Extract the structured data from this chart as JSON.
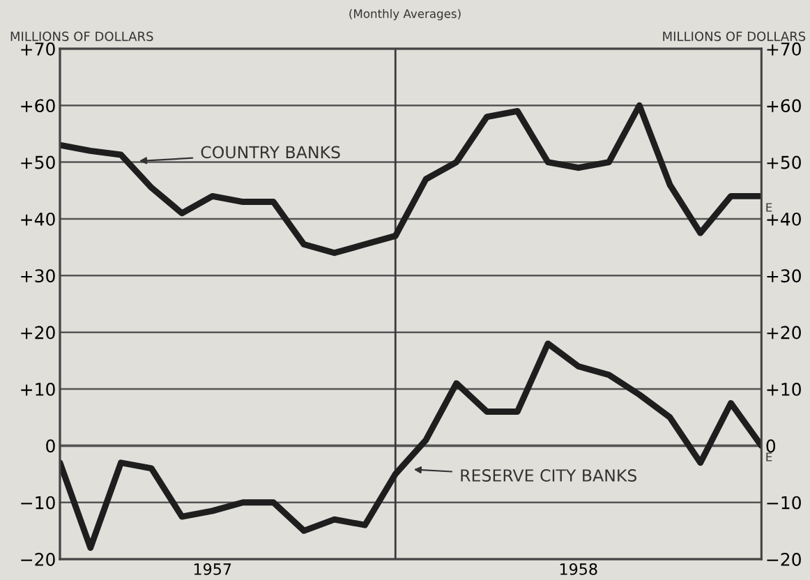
{
  "chart_data": {
    "type": "line",
    "subtitle": "(Monthly Averages)",
    "ylabel": "MILLIONS OF DOLLARS",
    "y2label": "MILLIONS OF DOLLARS",
    "categories": [
      null,
      null,
      null,
      null,
      null,
      "1957",
      null,
      null,
      null,
      null,
      null,
      null,
      null,
      null,
      null,
      null,
      null,
      "1958",
      null,
      null,
      null,
      null,
      null,
      null
    ],
    "ylim": [
      -20,
      70
    ],
    "yticks": [
      {
        "value": -20,
        "label": "−20"
      },
      {
        "value": -10,
        "label": "−10"
      },
      0,
      {
        "value": 10,
        "label": "+10"
      },
      {
        "value": 20,
        "label": "+20"
      },
      {
        "value": 30,
        "label": "+30"
      },
      {
        "value": 40,
        "label": "+40"
      },
      {
        "value": 50,
        "label": "+50"
      },
      {
        "value": 60,
        "label": "+60"
      },
      {
        "value": 70,
        "label": "+70"
      }
    ],
    "y2lim": [
      -20,
      70
    ],
    "y2ticks": [
      {
        "value": -20,
        "label": "−20"
      },
      {
        "value": -10,
        "label": "−10"
      },
      0,
      {
        "value": 10,
        "label": "+10"
      },
      {
        "value": 20,
        "label": "+20"
      },
      {
        "value": 30,
        "label": "+30"
      },
      {
        "value": 40,
        "label": "+40"
      },
      {
        "value": 50,
        "label": "+50"
      },
      {
        "value": 60,
        "label": "+60"
      },
      {
        "value": 70,
        "label": "+70"
      }
    ],
    "grid": "y",
    "legend": false,
    "marker": "none",
    "line_style": "solid",
    "series": [
      {
        "name": "COUNTRY BANKS",
        "color": "#1e1e1e",
        "values": [
          53,
          52,
          51.3,
          45.5,
          41,
          44,
          43,
          43,
          35.5,
          34,
          35.5,
          37,
          47,
          50,
          58,
          59,
          50,
          49,
          50,
          60,
          46,
          37.5,
          44,
          44
        ]
      },
      {
        "name": "RESERVE CITY BANKS",
        "color": "#1e1e1e",
        "values": [
          -3,
          -18,
          -3,
          -4,
          -12.5,
          -11.5,
          -10,
          -10,
          -15,
          -13,
          -14,
          -5,
          1,
          11,
          6,
          6,
          18,
          14,
          12.5,
          9,
          5,
          -3,
          7.5,
          0
        ]
      }
    ],
    "annotations": [
      "E",
      "E"
    ]
  }
}
